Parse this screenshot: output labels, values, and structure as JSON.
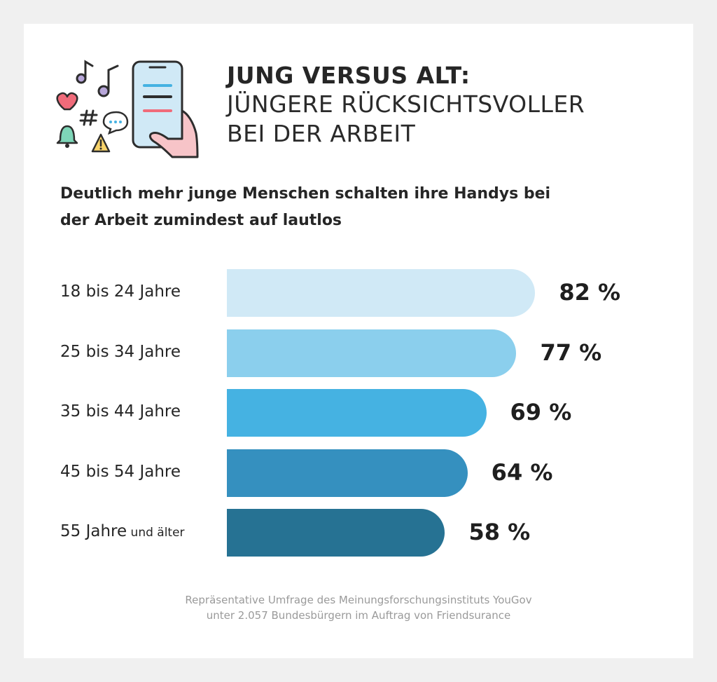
{
  "header": {
    "title_bold": "JUNG VERSUS ALT:",
    "title_line2": "JÜNGERE RÜCKSICHTSVOLLER",
    "title_line3": "BEI DER ARBEIT"
  },
  "subtitle": {
    "line1": "Deutlich mehr junge Menschen schalten ihre Handys bei",
    "line2": "der Arbeit zumindest auf lautlos"
  },
  "chart_data": {
    "type": "bar",
    "orientation": "horizontal",
    "categories": [
      {
        "main": "18 bis 24 Jahre",
        "suffix": ""
      },
      {
        "main": "25 bis 34 Jahre",
        "suffix": ""
      },
      {
        "main": "35 bis 44 Jahre",
        "suffix": ""
      },
      {
        "main": "45 bis 54 Jahre",
        "suffix": ""
      },
      {
        "main": "55 Jahre",
        "suffix": "und älter"
      }
    ],
    "values": [
      82,
      77,
      69,
      64,
      58
    ],
    "value_labels": [
      "82 %",
      "77 %",
      "69 %",
      "64 %",
      "58 %"
    ],
    "colors": [
      "#d0e9f6",
      "#8bcfed",
      "#45b2e2",
      "#3590bf",
      "#267293"
    ],
    "xlim": [
      0,
      100
    ]
  },
  "footnote": {
    "line1": "Repräsentative Umfrage des Meinungsforschungsinstituts YouGov",
    "line2": "unter 2.057 Bundesbürgern im Auftrag von Friendsurance"
  },
  "icons": [
    "music-note-icon",
    "heart-icon",
    "hashtag-icon",
    "speech-bubble-icon",
    "bell-icon",
    "warning-icon",
    "smartphone-icon",
    "hand-icon"
  ]
}
